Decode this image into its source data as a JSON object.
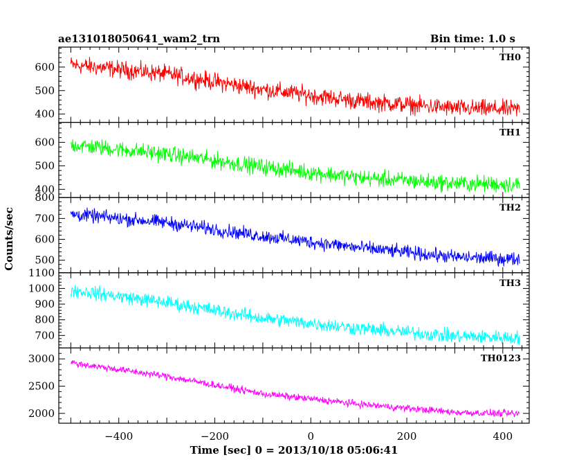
{
  "header": {
    "title": "ae131018050641_wam2_trn",
    "bin_time": "Bin time: 1.0 s"
  },
  "chart_data": {
    "type": "line",
    "xlabel": "Time [sec] 0 = 2013/10/18 05:06:41",
    "ylabel": "Counts/sec",
    "xlim": [
      -525,
      455
    ],
    "x_ticks": [
      -400,
      -200,
      0,
      200,
      400
    ],
    "x_range": [
      -500,
      435
    ],
    "panels": [
      {
        "name": "TH0",
        "color": "#ff0000",
        "ylim": [
          365,
          685
        ],
        "y_ticks": [
          400,
          500,
          600
        ],
        "trend": [
          [
            -500,
            610
          ],
          [
            -300,
            570
          ],
          [
            -100,
            505
          ],
          [
            100,
            455
          ],
          [
            300,
            425
          ],
          [
            435,
            420
          ]
        ],
        "noise": 32
      },
      {
        "name": "TH1",
        "color": "#00ff00",
        "ylim": [
          365,
          685
        ],
        "y_ticks": [
          400,
          500,
          600
        ],
        "trend": [
          [
            -500,
            590
          ],
          [
            -300,
            550
          ],
          [
            -100,
            495
          ],
          [
            100,
            450
          ],
          [
            300,
            425
          ],
          [
            435,
            420
          ]
        ],
        "noise": 30
      },
      {
        "name": "TH2",
        "color": "#0000ff",
        "ylim": [
          440,
          800
        ],
        "y_ticks": [
          500,
          600,
          700,
          800
        ],
        "trend": [
          [
            -500,
            720
          ],
          [
            -300,
            680
          ],
          [
            -100,
            615
          ],
          [
            100,
            560
          ],
          [
            300,
            515
          ],
          [
            435,
            505
          ]
        ],
        "noise": 28
      },
      {
        "name": "TH3",
        "color": "#00ffff",
        "ylim": [
          620,
          1100
        ],
        "y_ticks": [
          700,
          800,
          900,
          1000,
          1100
        ],
        "trend": [
          [
            -500,
            990
          ],
          [
            -300,
            910
          ],
          [
            -100,
            810
          ],
          [
            100,
            745
          ],
          [
            300,
            695
          ],
          [
            435,
            685
          ]
        ],
        "noise": 38
      },
      {
        "name": "TH0123",
        "color": "#ff00ff",
        "ylim": [
          1820,
          3200
        ],
        "y_ticks": [
          2000,
          2500,
          3000
        ],
        "trend": [
          [
            -500,
            2930
          ],
          [
            -300,
            2680
          ],
          [
            -100,
            2360
          ],
          [
            100,
            2170
          ],
          [
            300,
            2020
          ],
          [
            435,
            1990
          ]
        ],
        "noise": 55
      }
    ]
  }
}
